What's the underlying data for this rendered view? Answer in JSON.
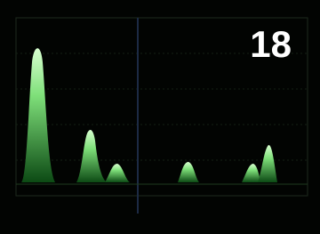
{
  "label": "18"
}
